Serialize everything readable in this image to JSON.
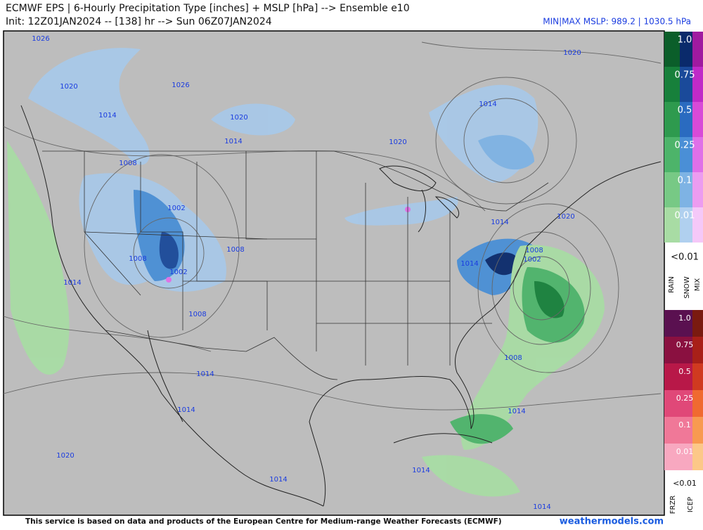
{
  "header": {
    "title": "ECMWF EPS | 6-Hourly Precipitation Type [inches] + MSLP [hPa] --> Ensemble e10",
    "init": "Init: 12Z01JAN2024 -- [138] hr --> Sun 06Z07JAN2024",
    "minmax": "MIN|MAX MSLP: 989.2 | 1030.5 hPa"
  },
  "map": {
    "isobar_labels": [
      "1026",
      "1020",
      "1026",
      "1014",
      "1020",
      "1014",
      "1020",
      "1014",
      "1020",
      "1008",
      "1002",
      "1008",
      "1008",
      "1002",
      "1014",
      "1008",
      "1014",
      "1020",
      "1008",
      "1002",
      "1014",
      "1008",
      "1014",
      "1014",
      "1014",
      "1020",
      "1014",
      "1014",
      "1014"
    ]
  },
  "legend": {
    "upper": {
      "levels": [
        "1.0",
        "0.75",
        "0.5",
        "0.25",
        "0.1",
        "0.01"
      ],
      "below": "<0.01",
      "types": [
        "RAIN",
        "SNOW",
        "MIX"
      ]
    },
    "lower": {
      "levels": [
        "1.0",
        "0.75",
        "0.5",
        "0.25",
        "0.1",
        "0.01"
      ],
      "below": "<0.01",
      "types": [
        "FRZR",
        "ICEP"
      ]
    }
  },
  "footer": {
    "credit": "This service is based on data and products of the European Centre for Medium-range Weather Forecasts (ECMWF)",
    "site": "weathermodels.com"
  }
}
